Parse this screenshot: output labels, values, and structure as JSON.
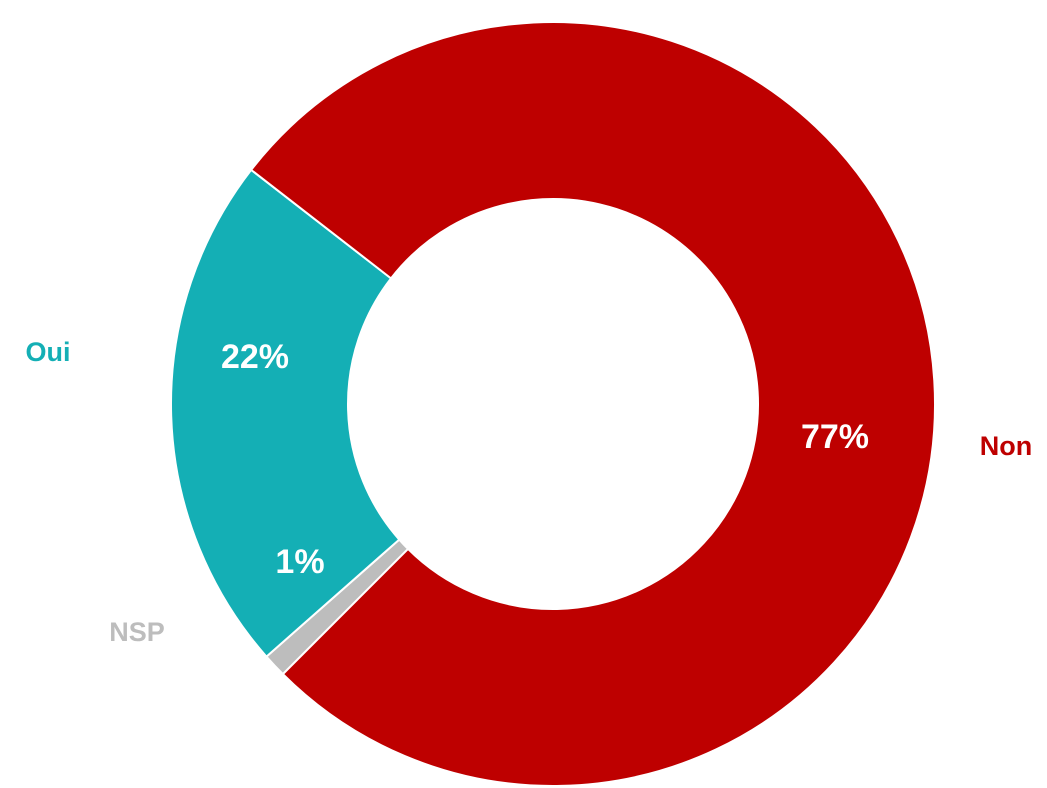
{
  "chart_data": {
    "type": "pie",
    "variant": "donut",
    "start_category": "NSP",
    "direction": "clockwise",
    "slices": [
      {
        "category": "NSP",
        "value": 1,
        "value_label": "1%",
        "color": "#BDBDBD"
      },
      {
        "category": "Oui",
        "value": 22,
        "value_label": "22%",
        "color": "#14AFB5"
      },
      {
        "category": "Non",
        "value": 77,
        "value_label": "77%",
        "color": "#BE0000"
      }
    ],
    "legend": "none",
    "label_style": {
      "value_label_color": "#FFFFFF",
      "category_label_colors": {
        "Oui": "#14AFB5",
        "Non": "#BE0000",
        "NSP": "#BDBDBD"
      }
    }
  }
}
